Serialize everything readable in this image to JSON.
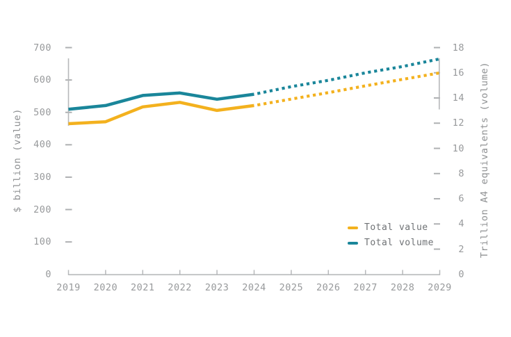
{
  "chart_data": {
    "type": "line",
    "x": [
      2019,
      2020,
      2021,
      2022,
      2023,
      2024,
      2025,
      2026,
      2027,
      2028,
      2029
    ],
    "series": [
      {
        "name": "Total value",
        "axis": "left",
        "color": "#F3B11E",
        "solid_through": 2024,
        "values": [
          465,
          471,
          517,
          531,
          506,
          521,
          541,
          561,
          582,
          602,
          622
        ]
      },
      {
        "name": "Total volume",
        "axis": "right",
        "color": "#1A869A",
        "solid_through": 2024,
        "values": [
          13.1,
          13.4,
          14.2,
          14.4,
          13.9,
          14.3,
          14.9,
          15.4,
          16.0,
          16.5,
          17.1
        ]
      }
    ],
    "left_axis": {
      "label": "$ billion (value)",
      "min": 0,
      "max": 700,
      "tick_step": 100,
      "ticks": [
        700,
        600,
        500,
        400,
        300,
        200,
        100,
        0
      ]
    },
    "right_axis": {
      "label": "Trillion A4 equivalents (volume)",
      "min": 0,
      "max": 18,
      "tick_step": 2,
      "ticks": [
        18,
        16,
        14,
        12,
        10,
        8,
        6,
        4,
        2,
        0
      ]
    },
    "x_axis": {
      "ticks": [
        "2019",
        "2020",
        "2021",
        "2022",
        "2023",
        "2024",
        "2025",
        "2026",
        "2027",
        "2028",
        "2029"
      ]
    },
    "legend": {
      "position": "inside-right",
      "items": [
        {
          "label": "Total value",
          "color": "#F3B11E"
        },
        {
          "label": "Total volume",
          "color": "#1A869A"
        }
      ]
    },
    "style_hints": {
      "forecast_from": 2024,
      "forecast_style": "dotted",
      "grid": "off",
      "axis_color": "#b6b8ba",
      "tick_label_color": "#97999b",
      "background": "#ffffff"
    }
  }
}
